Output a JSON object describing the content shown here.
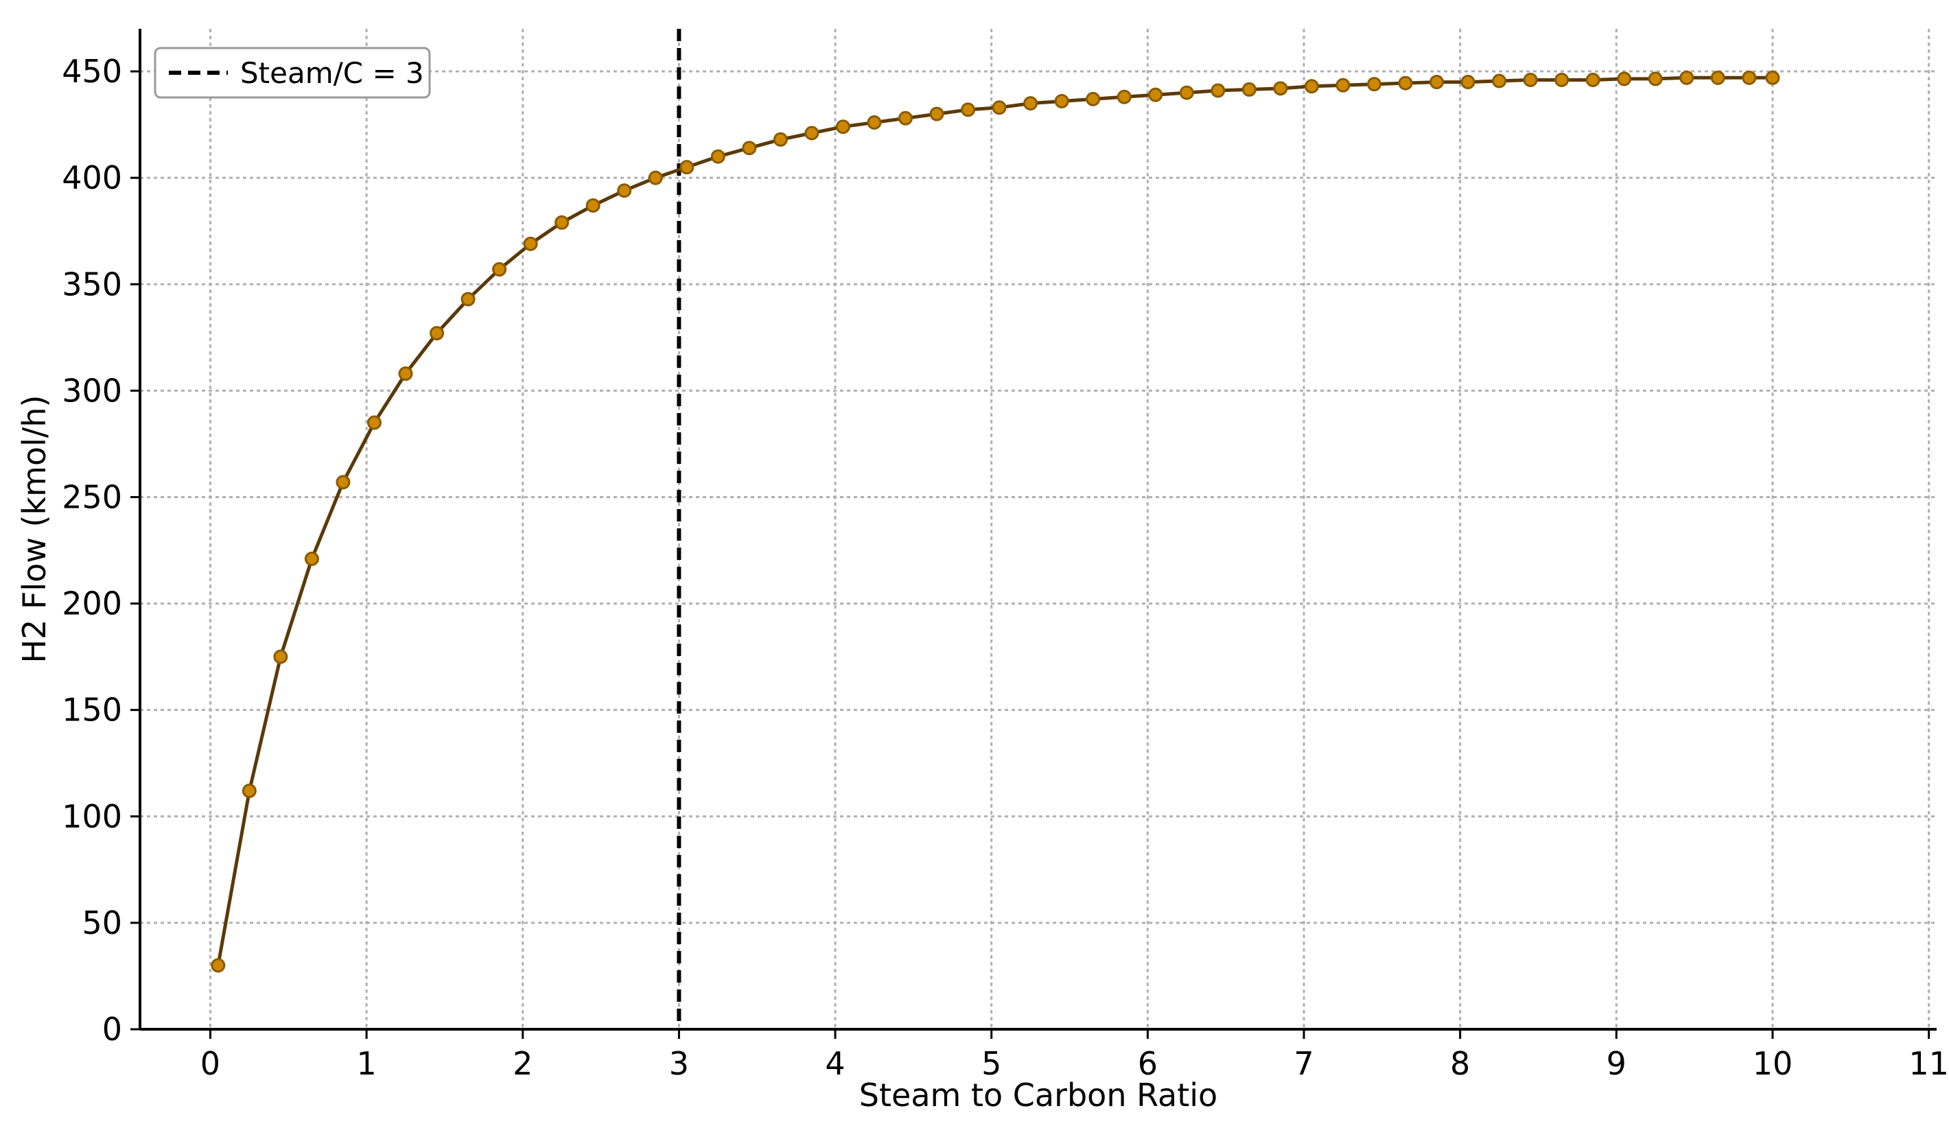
{
  "chart_data": {
    "type": "line",
    "title": "",
    "xlabel": "Steam to Carbon Ratio",
    "ylabel": "H2 Flow (kmol/h)",
    "xlim": [
      -0.45,
      11.05
    ],
    "ylim": [
      0,
      470
    ],
    "xticks": [
      0,
      1,
      2,
      3,
      4,
      5,
      6,
      7,
      8,
      9,
      10,
      11
    ],
    "yticks": [
      0,
      50,
      100,
      150,
      200,
      250,
      300,
      350,
      400,
      450
    ],
    "grid": true,
    "legend_position": "upper-left",
    "colors": {
      "line": "#5a3a08",
      "marker_fill": "#cc8800",
      "marker_edge": "#8a5a00",
      "vline": "#000000",
      "grid": "#b0b0b0"
    },
    "series": [
      {
        "x": [
          0.05,
          0.25,
          0.45,
          0.65,
          0.85,
          1.05,
          1.25,
          1.45,
          1.65,
          1.85,
          2.05,
          2.25,
          2.45,
          2.65,
          2.85,
          3.05,
          3.25,
          3.45,
          3.65,
          3.85,
          4.05,
          4.25,
          4.45,
          4.65,
          4.85,
          5.05,
          5.25,
          5.45,
          5.65,
          5.85,
          6.05,
          6.25,
          6.45,
          6.65,
          6.85,
          7.05,
          7.25,
          7.45,
          7.65,
          7.85,
          8.05,
          8.25,
          8.45,
          8.65,
          8.85,
          9.05,
          9.25,
          9.45,
          9.65,
          9.85,
          10.0
        ],
        "y": [
          30,
          112,
          175,
          221,
          257,
          285,
          308,
          327,
          343,
          357,
          369,
          379,
          387,
          394,
          400,
          405,
          410,
          414,
          418,
          421,
          424,
          426,
          428,
          430,
          432,
          433,
          435,
          436,
          437,
          438,
          439,
          440,
          441,
          441.5,
          442,
          443,
          443.5,
          444,
          444.5,
          445,
          445,
          445.5,
          446,
          446,
          446,
          446.5,
          446.5,
          447,
          447,
          447,
          447
        ]
      }
    ],
    "vlines": [
      {
        "x": 3,
        "label": "Steam/C = 3",
        "style": "dashed"
      }
    ]
  }
}
